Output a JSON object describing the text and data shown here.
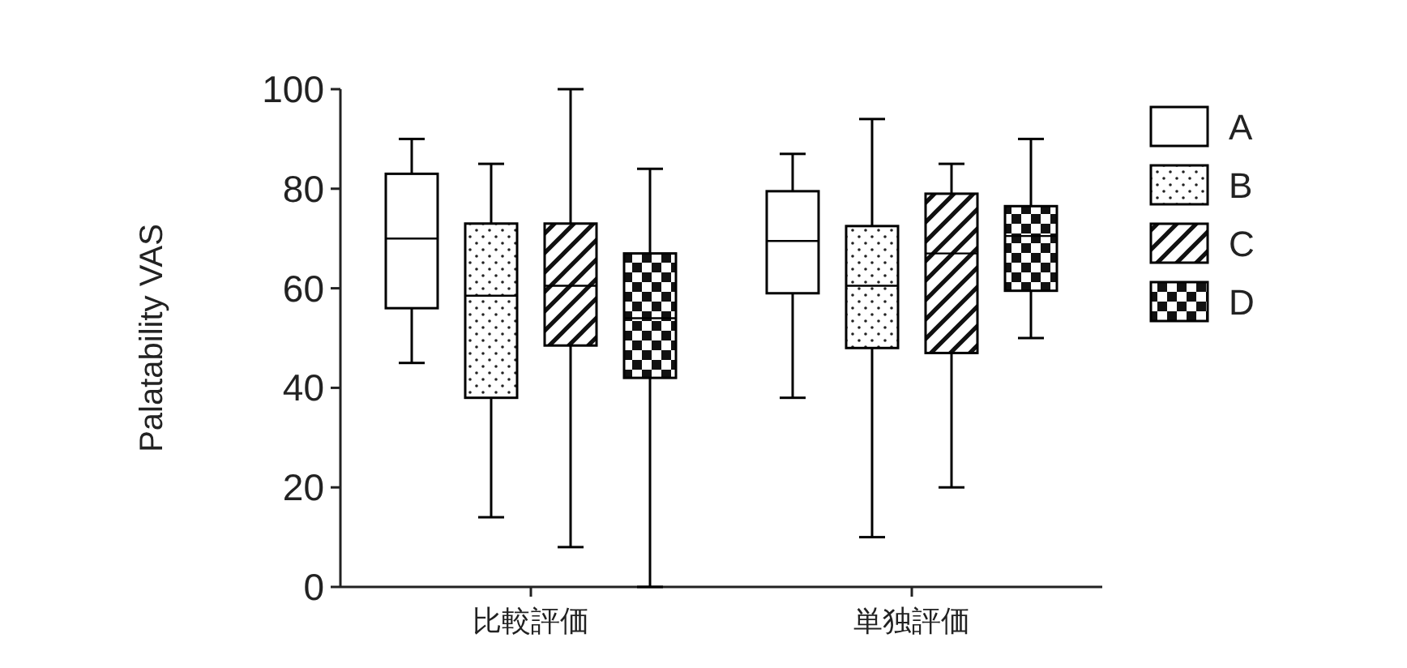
{
  "chart_data": {
    "type": "box",
    "ylabel": "Palatability VAS",
    "categories": [
      "比較評価",
      "単独評価"
    ],
    "ylim": [
      0,
      100
    ],
    "yticks": [
      0,
      20,
      40,
      60,
      80,
      100
    ],
    "legend": "top right",
    "grid": false,
    "series": [
      {
        "name": "A",
        "color": "#000000",
        "boxes": [
          {
            "low": 45,
            "q1": 56,
            "median": 70,
            "q3": 83,
            "high": 90
          },
          {
            "low": 38,
            "q1": 59,
            "median": 69.5,
            "q3": 79.5,
            "high": 87
          }
        ]
      },
      {
        "name": "B",
        "color": "#000000",
        "boxes": [
          {
            "low": 14,
            "q1": 38,
            "median": 58.5,
            "q3": 73,
            "high": 85
          },
          {
            "low": 10,
            "q1": 48,
            "median": 60.5,
            "q3": 72.5,
            "high": 94
          }
        ]
      },
      {
        "name": "C",
        "color": "#000000",
        "boxes": [
          {
            "low": 8,
            "q1": 48.5,
            "median": 60.5,
            "q3": 73,
            "high": 100
          },
          {
            "low": 20,
            "q1": 47,
            "median": 67,
            "q3": 79,
            "high": 85
          }
        ]
      },
      {
        "name": "D",
        "color": "#000000",
        "boxes": [
          {
            "low": 0,
            "q1": 42,
            "median": 54,
            "q3": 67,
            "high": 84
          },
          {
            "low": 50,
            "q1": 59.5,
            "median": 70.5,
            "q3": 76.5,
            "high": 90
          }
        ]
      }
    ]
  }
}
